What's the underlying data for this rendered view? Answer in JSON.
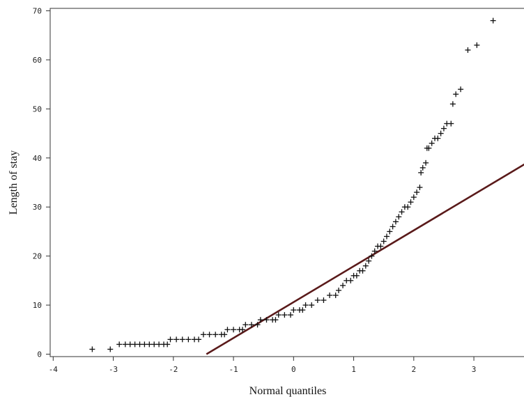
{
  "chart_data": {
    "type": "scatter",
    "title": "",
    "xlabel": "Normal quantiles",
    "ylabel": "Length of stay",
    "xlim": [
      -4.05,
      3.95
    ],
    "ylim": [
      -0.5,
      70.5
    ],
    "xticks": [
      -4,
      -3,
      -2,
      -1,
      0,
      1,
      2,
      3
    ],
    "yticks": [
      0,
      10,
      20,
      30,
      40,
      50,
      60,
      70
    ],
    "grid": false,
    "marker": "+",
    "colors": {
      "points": "#111111",
      "reference_line": "#5a1a1a"
    },
    "reference_line": {
      "x": [
        -1.45,
        3.95
      ],
      "y": [
        0,
        39.5
      ]
    },
    "points": {
      "x": [
        -3.35,
        -3.05,
        -2.9,
        -2.8,
        -2.72,
        -2.64,
        -2.56,
        -2.48,
        -2.4,
        -2.32,
        -2.24,
        -2.16,
        -2.1,
        -2.05,
        -1.95,
        -1.85,
        -1.75,
        -1.65,
        -1.58,
        -1.5,
        -1.4,
        -1.3,
        -1.2,
        -1.15,
        -1.1,
        -1.0,
        -0.9,
        -0.85,
        -0.8,
        -0.7,
        -0.6,
        -0.55,
        -0.45,
        -0.35,
        -0.3,
        -0.25,
        -0.15,
        -0.05,
        0.0,
        0.1,
        0.15,
        0.2,
        0.3,
        0.4,
        0.5,
        0.6,
        0.7,
        0.75,
        0.82,
        0.88,
        0.95,
        1.0,
        1.05,
        1.1,
        1.15,
        1.2,
        1.25,
        1.3,
        1.35,
        1.4,
        1.45,
        1.5,
        1.55,
        1.6,
        1.65,
        1.7,
        1.75,
        1.8,
        1.85,
        1.9,
        1.95,
        2.0,
        2.05,
        2.1,
        2.12,
        2.15,
        2.2,
        2.22,
        2.25,
        2.3,
        2.35,
        2.4,
        2.45,
        2.5,
        2.55,
        2.62,
        2.65,
        2.7,
        2.78,
        2.9,
        3.05,
        3.32
      ],
      "y": [
        1,
        1,
        2,
        2,
        2,
        2,
        2,
        2,
        2,
        2,
        2,
        2,
        2,
        3,
        3,
        3,
        3,
        3,
        3,
        4,
        4,
        4,
        4,
        4,
        5,
        5,
        5,
        5,
        6,
        6,
        6,
        7,
        7,
        7,
        7,
        8,
        8,
        8,
        9,
        9,
        9,
        10,
        10,
        11,
        11,
        12,
        12,
        13,
        14,
        15,
        15,
        16,
        16,
        17,
        17,
        18,
        19,
        20,
        21,
        22,
        22,
        23,
        24,
        25,
        26,
        27,
        28,
        29,
        30,
        30,
        31,
        32,
        33,
        34,
        37,
        38,
        39,
        42,
        42,
        43,
        44,
        44,
        45,
        46,
        47,
        47,
        51,
        53,
        54,
        62,
        63,
        68
      ]
    }
  }
}
